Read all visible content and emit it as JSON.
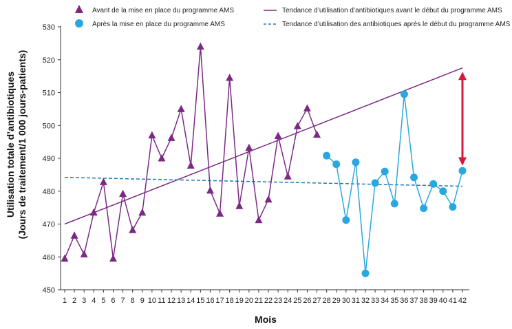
{
  "chart_data": {
    "type": "line",
    "title": "",
    "xlabel": "Mois",
    "ylabel_line1": "Utilisation totale d’antibiotiques",
    "ylabel_line2": "(Jours de traitement/1 000 jours-patients)",
    "ylim": [
      450,
      530
    ],
    "yticks": [
      450,
      460,
      470,
      480,
      490,
      500,
      510,
      520,
      530
    ],
    "xlim": [
      1,
      42
    ],
    "grid": false,
    "legend_position": "top",
    "series": [
      {
        "name": "Avant de la mise en place du programme AMS",
        "marker": "triangle",
        "color": "#7b2a84",
        "x": [
          1,
          2,
          3,
          4,
          5,
          6,
          7,
          8,
          9,
          10,
          11,
          12,
          13,
          14,
          15,
          16,
          17,
          18,
          19,
          20,
          21,
          22,
          23,
          24,
          25,
          26,
          27
        ],
        "values": [
          459.5,
          466.5,
          460.8,
          473.5,
          482.8,
          459.5,
          479.2,
          468.2,
          473.5,
          497,
          490,
          496.2,
          505,
          487.8,
          524,
          480.2,
          473.2,
          514.5,
          475.5,
          493.2,
          471.2,
          477.5,
          496.8,
          484.5,
          499.8,
          505.2,
          497.2
        ]
      },
      {
        "name": "Après la mise en place du programme AMS",
        "marker": "circle",
        "color": "#29a8df",
        "x": [
          28,
          29,
          30,
          31,
          32,
          33,
          34,
          35,
          36,
          37,
          38,
          39,
          40,
          41,
          42
        ],
        "values": [
          490.8,
          488.2,
          471.2,
          488.8,
          455,
          482.5,
          486,
          476.2,
          509.5,
          484.2,
          474.8,
          482.2,
          480,
          475.2,
          486.2
        ]
      }
    ],
    "trendlines": [
      {
        "name": "Tendance d’utilisation d’antibiotiques avant le début du programme AMS",
        "style": "solid",
        "color": "#7b2a84",
        "x": [
          1,
          42
        ],
        "values": [
          470,
          517.5
        ]
      },
      {
        "name": "Tendance d’utilisation des antibiotiques après le début du programme AMS",
        "style": "dashed",
        "color": "#1f78b4",
        "x": [
          1,
          42
        ],
        "values": [
          484.2,
          481.5
        ]
      }
    ],
    "annotation": {
      "type": "double-arrow",
      "color": "#d7183e",
      "x": 42,
      "from": 486.2,
      "to": 517.5
    }
  }
}
